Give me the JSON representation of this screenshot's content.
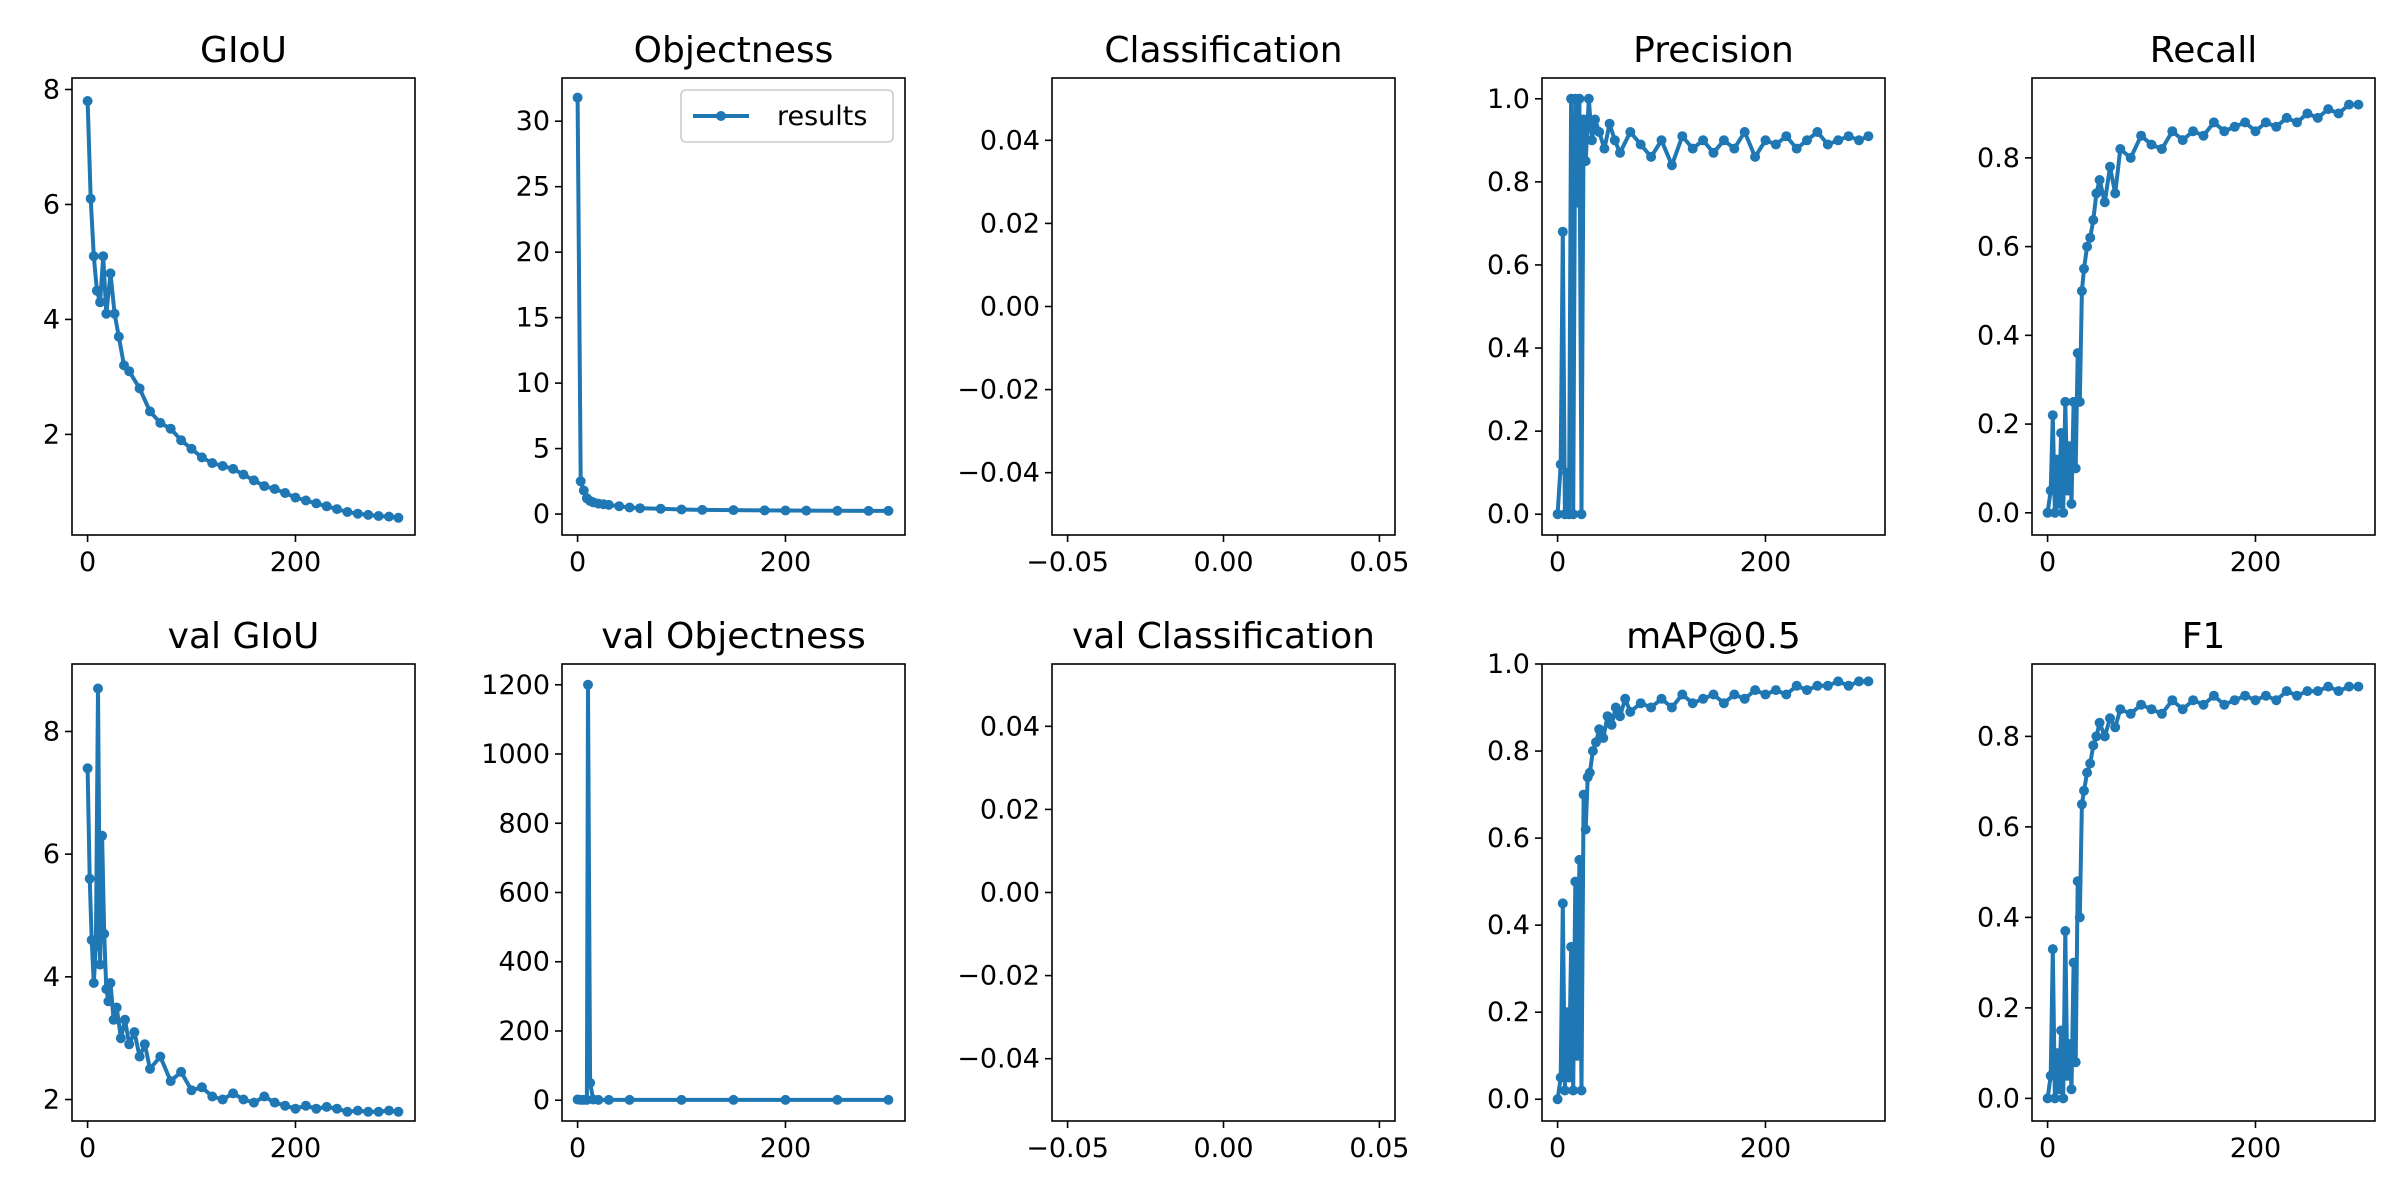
{
  "figure": {
    "line_color": "#1f77b4",
    "background": "#ffffff",
    "legend_label": "results"
  },
  "chart_data": [
    {
      "type": "line",
      "title": "GIoU",
      "xlim": [
        -15,
        315
      ],
      "ylim": [
        0.25,
        8.2
      ],
      "xticks": [
        0,
        200
      ],
      "xtick_labels": [
        "0",
        "200"
      ],
      "yticks": [
        2,
        4,
        6,
        8
      ],
      "ytick_labels": [
        "2",
        "4",
        "6",
        "8"
      ],
      "series": [
        {
          "x": [
            0,
            3,
            6,
            9,
            12,
            15,
            18,
            22,
            26,
            30,
            35,
            40,
            50,
            60,
            70,
            80,
            90,
            100,
            110,
            120,
            130,
            140,
            150,
            160,
            170,
            180,
            190,
            200,
            210,
            220,
            230,
            240,
            250,
            260,
            270,
            280,
            290,
            299
          ],
          "y": [
            7.8,
            6.1,
            5.1,
            4.5,
            4.3,
            5.1,
            4.1,
            4.8,
            4.1,
            3.7,
            3.2,
            3.1,
            2.8,
            2.4,
            2.2,
            2.1,
            1.9,
            1.75,
            1.6,
            1.5,
            1.45,
            1.4,
            1.3,
            1.2,
            1.1,
            1.05,
            0.98,
            0.9,
            0.85,
            0.8,
            0.75,
            0.7,
            0.65,
            0.62,
            0.6,
            0.58,
            0.57,
            0.55
          ]
        }
      ]
    },
    {
      "type": "line",
      "title": "Objectness",
      "xlim": [
        -15,
        315
      ],
      "ylim": [
        -1.6,
        33.3
      ],
      "xticks": [
        0,
        200
      ],
      "xtick_labels": [
        "0",
        "200"
      ],
      "yticks": [
        0,
        5,
        10,
        15,
        20,
        25,
        30
      ],
      "ytick_labels": [
        "0",
        "5",
        "10",
        "15",
        "20",
        "25",
        "30"
      ],
      "legend": {
        "entries": [
          "results"
        ],
        "loc": "upper right"
      },
      "series": [
        {
          "name": "results",
          "x": [
            0,
            3,
            6,
            9,
            12,
            15,
            20,
            25,
            30,
            40,
            50,
            60,
            80,
            100,
            120,
            150,
            180,
            200,
            220,
            250,
            280,
            299
          ],
          "y": [
            31.8,
            2.5,
            1.8,
            1.2,
            1.0,
            0.9,
            0.8,
            0.75,
            0.7,
            0.6,
            0.5,
            0.45,
            0.4,
            0.35,
            0.32,
            0.3,
            0.28,
            0.27,
            0.26,
            0.25,
            0.24,
            0.24
          ]
        }
      ]
    },
    {
      "type": "line",
      "title": "Classification",
      "xlim": [
        -0.055,
        0.055
      ],
      "ylim": [
        -0.055,
        0.055
      ],
      "xticks": [
        -0.05,
        0.0,
        0.05
      ],
      "xtick_labels": [
        "−0.05",
        "0.00",
        "0.05"
      ],
      "yticks": [
        -0.04,
        -0.02,
        0.0,
        0.02,
        0.04
      ],
      "ytick_labels": [
        "−0.04",
        "−0.02",
        "0.00",
        "0.02",
        "0.04"
      ],
      "series": []
    },
    {
      "type": "line",
      "title": "Precision",
      "xlim": [
        -15,
        315
      ],
      "ylim": [
        -0.05,
        1.05
      ],
      "xticks": [
        0,
        200
      ],
      "xtick_labels": [
        "0",
        "200"
      ],
      "yticks": [
        0.0,
        0.2,
        0.4,
        0.6,
        0.8,
        1.0
      ],
      "ytick_labels": [
        "0.0",
        "0.2",
        "0.4",
        "0.6",
        "0.8",
        "1.0"
      ],
      "series": [
        {
          "x": [
            0,
            3,
            5,
            7,
            9,
            11,
            13,
            15,
            17,
            19,
            21,
            23,
            25,
            27,
            30,
            33,
            36,
            40,
            45,
            50,
            55,
            60,
            70,
            80,
            90,
            100,
            110,
            120,
            130,
            140,
            150,
            160,
            170,
            180,
            190,
            200,
            210,
            220,
            230,
            240,
            250,
            260,
            270,
            280,
            290,
            299
          ],
          "y": [
            0.0,
            0.12,
            0.68,
            0.0,
            0.1,
            0.0,
            1.0,
            0.0,
            1.0,
            0.75,
            1.0,
            0.0,
            0.95,
            0.85,
            1.0,
            0.9,
            0.95,
            0.92,
            0.88,
            0.94,
            0.9,
            0.87,
            0.92,
            0.89,
            0.86,
            0.9,
            0.84,
            0.91,
            0.88,
            0.9,
            0.87,
            0.9,
            0.88,
            0.92,
            0.86,
            0.9,
            0.89,
            0.91,
            0.88,
            0.9,
            0.92,
            0.89,
            0.9,
            0.91,
            0.9,
            0.91
          ]
        }
      ]
    },
    {
      "type": "line",
      "title": "Recall",
      "xlim": [
        -15,
        315
      ],
      "ylim": [
        -0.05,
        0.98
      ],
      "xticks": [
        0,
        200
      ],
      "xtick_labels": [
        "0",
        "200"
      ],
      "yticks": [
        0.0,
        0.2,
        0.4,
        0.6,
        0.8
      ],
      "ytick_labels": [
        "0.0",
        "0.2",
        "0.4",
        "0.6",
        "0.8"
      ],
      "series": [
        {
          "x": [
            0,
            3,
            5,
            7,
            9,
            11,
            13,
            15,
            17,
            19,
            21,
            23,
            25,
            27,
            29,
            31,
            33,
            35,
            38,
            41,
            44,
            47,
            50,
            55,
            60,
            65,
            70,
            80,
            90,
            100,
            110,
            120,
            130,
            140,
            150,
            160,
            170,
            180,
            190,
            200,
            210,
            220,
            230,
            240,
            250,
            260,
            270,
            280,
            290,
            299
          ],
          "y": [
            0.0,
            0.05,
            0.22,
            0.0,
            0.12,
            0.02,
            0.18,
            0.0,
            0.25,
            0.05,
            0.15,
            0.02,
            0.25,
            0.1,
            0.36,
            0.25,
            0.5,
            0.55,
            0.6,
            0.62,
            0.66,
            0.72,
            0.75,
            0.7,
            0.78,
            0.72,
            0.82,
            0.8,
            0.85,
            0.83,
            0.82,
            0.86,
            0.84,
            0.86,
            0.85,
            0.88,
            0.86,
            0.87,
            0.88,
            0.86,
            0.88,
            0.87,
            0.89,
            0.88,
            0.9,
            0.89,
            0.91,
            0.9,
            0.92,
            0.92
          ]
        }
      ]
    },
    {
      "type": "line",
      "title": "val GIoU",
      "xlim": [
        -15,
        315
      ],
      "ylim": [
        1.65,
        9.1
      ],
      "xticks": [
        0,
        200
      ],
      "xtick_labels": [
        "0",
        "200"
      ],
      "yticks": [
        2,
        4,
        6,
        8
      ],
      "ytick_labels": [
        "2",
        "4",
        "6",
        "8"
      ],
      "series": [
        {
          "x": [
            0,
            2,
            4,
            6,
            8,
            10,
            12,
            14,
            16,
            18,
            20,
            22,
            25,
            28,
            32,
            36,
            40,
            45,
            50,
            55,
            60,
            70,
            80,
            90,
            100,
            110,
            120,
            130,
            140,
            150,
            160,
            170,
            180,
            190,
            200,
            210,
            220,
            230,
            240,
            250,
            260,
            270,
            280,
            290,
            299
          ],
          "y": [
            7.4,
            5.6,
            4.6,
            3.9,
            4.5,
            8.7,
            4.2,
            6.3,
            4.7,
            3.8,
            3.6,
            3.9,
            3.3,
            3.5,
            3.0,
            3.3,
            2.9,
            3.1,
            2.7,
            2.9,
            2.5,
            2.7,
            2.3,
            2.45,
            2.15,
            2.2,
            2.05,
            2.0,
            2.1,
            2.0,
            1.95,
            2.05,
            1.95,
            1.9,
            1.85,
            1.9,
            1.85,
            1.88,
            1.85,
            1.8,
            1.82,
            1.8,
            1.8,
            1.82,
            1.8
          ]
        }
      ]
    },
    {
      "type": "line",
      "title": "val Objectness",
      "xlim": [
        -15,
        315
      ],
      "ylim": [
        -60,
        1260
      ],
      "xticks": [
        0,
        200
      ],
      "xtick_labels": [
        "0",
        "200"
      ],
      "yticks": [
        0,
        200,
        400,
        600,
        800,
        1000,
        1200
      ],
      "ytick_labels": [
        "0",
        "200",
        "400",
        "600",
        "800",
        "1000",
        "1200"
      ],
      "series": [
        {
          "x": [
            0,
            3,
            6,
            9,
            10,
            12,
            15,
            20,
            30,
            50,
            100,
            150,
            200,
            250,
            299
          ],
          "y": [
            2,
            1,
            1,
            1,
            1200,
            50,
            2,
            1,
            1,
            1,
            1,
            1,
            1,
            1,
            1
          ]
        }
      ]
    },
    {
      "type": "line",
      "title": "val Classification",
      "xlim": [
        -0.055,
        0.055
      ],
      "ylim": [
        -0.055,
        0.055
      ],
      "xticks": [
        -0.05,
        0.0,
        0.05
      ],
      "xtick_labels": [
        "−0.05",
        "0.00",
        "0.05"
      ],
      "yticks": [
        -0.04,
        -0.02,
        0.0,
        0.02,
        0.04
      ],
      "ytick_labels": [
        "−0.04",
        "−0.02",
        "0.00",
        "0.02",
        "0.04"
      ],
      "series": []
    },
    {
      "type": "line",
      "title": "mAP@0.5",
      "xlim": [
        -15,
        315
      ],
      "ylim": [
        -0.05,
        1.0
      ],
      "xticks": [
        0,
        200
      ],
      "xtick_labels": [
        "0",
        "200"
      ],
      "yticks": [
        0.0,
        0.2,
        0.4,
        0.6,
        0.8,
        1.0
      ],
      "ytick_labels": [
        "0.0",
        "0.2",
        "0.4",
        "0.6",
        "0.8",
        "1.0"
      ],
      "series": [
        {
          "x": [
            0,
            3,
            5,
            7,
            9,
            11,
            13,
            15,
            17,
            19,
            21,
            23,
            25,
            27,
            29,
            31,
            34,
            37,
            40,
            44,
            48,
            52,
            56,
            60,
            65,
            70,
            80,
            90,
            100,
            110,
            120,
            130,
            140,
            150,
            160,
            170,
            180,
            190,
            200,
            210,
            220,
            230,
            240,
            250,
            260,
            270,
            280,
            290,
            299
          ],
          "y": [
            0.0,
            0.05,
            0.45,
            0.02,
            0.2,
            0.05,
            0.35,
            0.02,
            0.5,
            0.1,
            0.55,
            0.02,
            0.7,
            0.62,
            0.74,
            0.75,
            0.8,
            0.82,
            0.85,
            0.83,
            0.88,
            0.86,
            0.9,
            0.88,
            0.92,
            0.89,
            0.91,
            0.9,
            0.92,
            0.9,
            0.93,
            0.91,
            0.92,
            0.93,
            0.91,
            0.93,
            0.92,
            0.94,
            0.93,
            0.94,
            0.93,
            0.95,
            0.94,
            0.95,
            0.95,
            0.96,
            0.95,
            0.96,
            0.96
          ]
        }
      ]
    },
    {
      "type": "line",
      "title": "F1",
      "xlim": [
        -15,
        315
      ],
      "ylim": [
        -0.05,
        0.96
      ],
      "xticks": [
        0,
        200
      ],
      "xtick_labels": [
        "0",
        "200"
      ],
      "yticks": [
        0.0,
        0.2,
        0.4,
        0.6,
        0.8
      ],
      "ytick_labels": [
        "0.0",
        "0.2",
        "0.4",
        "0.6",
        "0.8"
      ],
      "series": [
        {
          "x": [
            0,
            3,
            5,
            7,
            9,
            11,
            13,
            15,
            17,
            19,
            21,
            23,
            25,
            27,
            29,
            31,
            33,
            35,
            38,
            41,
            44,
            47,
            50,
            55,
            60,
            65,
            70,
            80,
            90,
            100,
            110,
            120,
            130,
            140,
            150,
            160,
            170,
            180,
            190,
            200,
            210,
            220,
            230,
            240,
            250,
            260,
            270,
            280,
            290,
            299
          ],
          "y": [
            0.0,
            0.05,
            0.33,
            0.0,
            0.1,
            0.02,
            0.15,
            0.0,
            0.37,
            0.05,
            0.12,
            0.02,
            0.3,
            0.08,
            0.48,
            0.4,
            0.65,
            0.68,
            0.72,
            0.74,
            0.78,
            0.8,
            0.83,
            0.8,
            0.84,
            0.82,
            0.86,
            0.85,
            0.87,
            0.86,
            0.85,
            0.88,
            0.86,
            0.88,
            0.87,
            0.89,
            0.87,
            0.88,
            0.89,
            0.88,
            0.89,
            0.88,
            0.9,
            0.89,
            0.9,
            0.9,
            0.91,
            0.9,
            0.91,
            0.91
          ]
        }
      ]
    }
  ]
}
